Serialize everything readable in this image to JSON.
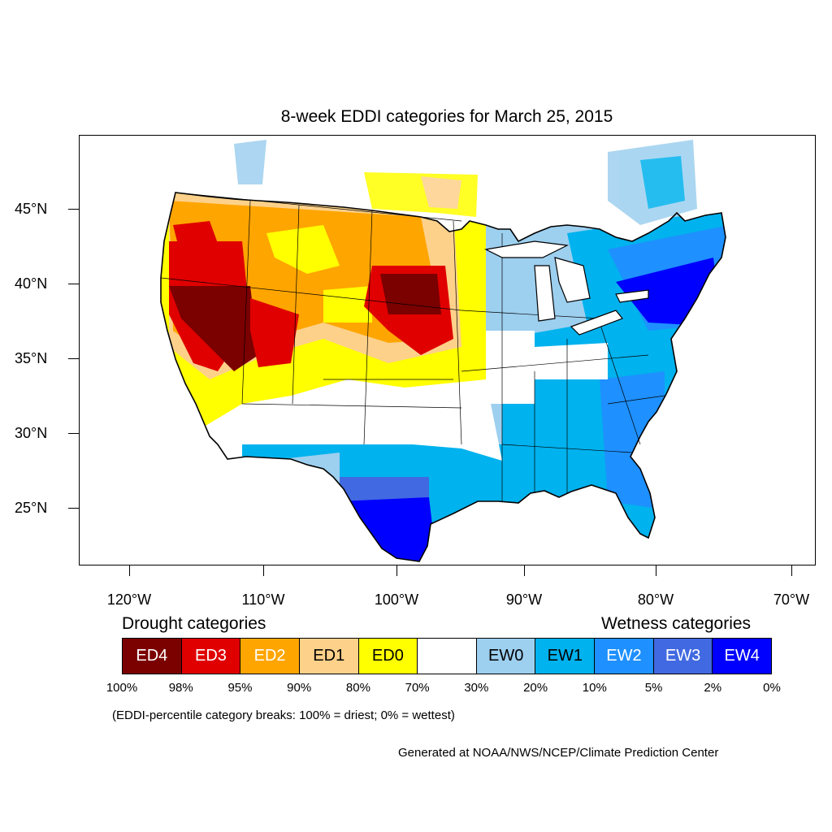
{
  "title": "8-week EDDI categories for March 25, 2015",
  "map": {
    "lat_labels": [
      "45°N",
      "40°N",
      "35°N",
      "30°N",
      "25°N"
    ],
    "lon_labels": [
      "120°W",
      "110°W",
      "100°W",
      "90°W",
      "80°W",
      "70°W"
    ]
  },
  "legend": {
    "drought_heading": "Drought categories",
    "wetness_heading": "Wetness categories",
    "categories": [
      {
        "label": "ED4",
        "color": "#7b0000",
        "text_color": "#ffffff"
      },
      {
        "label": "ED3",
        "color": "#e00000",
        "text_color": "#ffffff"
      },
      {
        "label": "ED2",
        "color": "#ffa500",
        "text_color": "#ffffff"
      },
      {
        "label": "ED1",
        "color": "#fdd18a",
        "text_color": "#000000"
      },
      {
        "label": "ED0",
        "color": "#ffff00",
        "text_color": "#000000"
      },
      {
        "label": "",
        "color": "#ffffff",
        "text_color": "#000000"
      },
      {
        "label": "EW0",
        "color": "#9dcfef",
        "text_color": "#000000"
      },
      {
        "label": "EW1",
        "color": "#00b2ee",
        "text_color": "#000000"
      },
      {
        "label": "EW2",
        "color": "#1e90ff",
        "text_color": "#ffffff"
      },
      {
        "label": "EW3",
        "color": "#4169e1",
        "text_color": "#ffffff"
      },
      {
        "label": "EW4",
        "color": "#0000ff",
        "text_color": "#ffffff"
      }
    ],
    "percentiles": [
      "100%",
      "98%",
      "95%",
      "90%",
      "80%",
      "70%",
      "30%",
      "20%",
      "10%",
      "5%",
      "2%",
      "0%"
    ]
  },
  "note": "(EDDI-percentile category breaks: 100% = driest; 0% = wettest)",
  "credit": "Generated at NOAA/NWS/NCEP/Climate Prediction Center"
}
